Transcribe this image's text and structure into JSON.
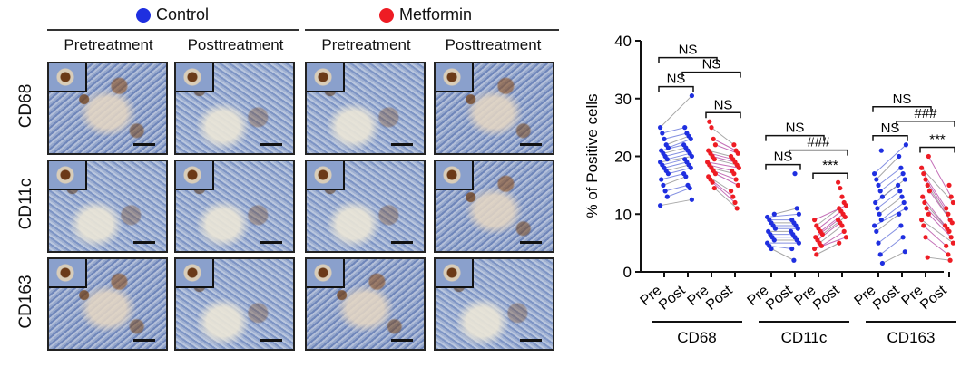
{
  "figure": {
    "legend": {
      "control_label": "Control",
      "metformin_label": "Metformin",
      "control_color": "#1f2fe0",
      "metformin_color": "#ee1c24"
    },
    "columns": [
      "Pretreatment",
      "Posttreatment",
      "Pretreatment",
      "Posttreatment"
    ],
    "rows": [
      "CD68",
      "CD11c",
      "CD163"
    ]
  },
  "chart_data": {
    "type": "scatter",
    "ylabel": "% of Positive cells",
    "ylim": [
      0,
      40
    ],
    "yticks": [
      0,
      10,
      20,
      30,
      40
    ],
    "groups": [
      {
        "name": "CD68",
        "x_labels": [
          "Pre",
          "Post",
          "Pre",
          "Post"
        ],
        "series": [
          {
            "name": "Control Pre",
            "color": "#1f2fe0",
            "values": [
              11.5,
              13,
              14,
              15,
              16,
              17,
              17.5,
              18,
              18.5,
              19,
              19.5,
              20,
              20.5,
              21,
              21.5,
              22,
              23,
              24,
              25
            ]
          },
          {
            "name": "Control Post",
            "color": "#1f2fe0",
            "values": [
              12.5,
              14.5,
              15,
              16.5,
              17,
              18,
              18.5,
              19,
              19.5,
              20,
              20.5,
              21,
              21.5,
              22,
              23,
              23.5,
              24,
              25,
              30.5
            ]
          },
          {
            "name": "Metformin Pre",
            "color": "#ee1c24",
            "values": [
              14.5,
              15.5,
              16,
              16.5,
              17,
              17.5,
              18,
              18.5,
              19,
              19.5,
              20,
              20.5,
              21,
              22,
              23,
              25,
              26
            ]
          },
          {
            "name": "Metformin Post",
            "color": "#ee1c24",
            "values": [
              11,
              12,
              13,
              14,
              15,
              16,
              17,
              17.5,
              18,
              18.5,
              19,
              19.5,
              20,
              20.5,
              21,
              22
            ]
          }
        ],
        "comparisons": [
          {
            "label": "NS",
            "from": 0,
            "to": 1
          },
          {
            "label": "NS",
            "from": 2,
            "to": 3
          },
          {
            "label": "NS",
            "from": 0,
            "to": 2
          },
          {
            "label": "NS",
            "from": 1,
            "to": 3
          }
        ]
      },
      {
        "name": "CD11c",
        "x_labels": [
          "Pre",
          "Post",
          "Pre",
          "Post"
        ],
        "series": [
          {
            "name": "Control Pre",
            "color": "#1f2fe0",
            "values": [
              4,
              4.5,
              5,
              5.5,
              6,
              6.5,
              7,
              7.5,
              8,
              8.5,
              9,
              9.5,
              10
            ]
          },
          {
            "name": "Control Post",
            "color": "#1f2fe0",
            "values": [
              2,
              4,
              5,
              5.5,
              6,
              6.5,
              7,
              7.5,
              8,
              8.5,
              9,
              10,
              11,
              17
            ]
          },
          {
            "name": "Metformin Pre",
            "color": "#ee1c24",
            "values": [
              3,
              4,
              4.5,
              5,
              5.5,
              6,
              6.5,
              7,
              7.5,
              8,
              9
            ]
          },
          {
            "name": "Metformin Post",
            "color": "#ee1c24",
            "values": [
              5,
              6,
              7,
              8,
              8.5,
              9,
              9.5,
              10,
              10.5,
              11,
              11.5,
              12,
              13,
              14.5,
              15.5
            ]
          }
        ],
        "comparisons": [
          {
            "label": "NS",
            "from": 0,
            "to": 1
          },
          {
            "label": "***",
            "from": 2,
            "to": 3
          },
          {
            "label": "NS",
            "from": 0,
            "to": 2
          },
          {
            "label": "###",
            "from": 1,
            "to": 3
          }
        ]
      },
      {
        "name": "CD163",
        "x_labels": [
          "Pre",
          "Post",
          "Pre",
          "Post"
        ],
        "series": [
          {
            "name": "Control Pre",
            "color": "#1f2fe0",
            "values": [
              1.5,
              3,
              5,
              7,
              8,
              9,
              10,
              11,
              12,
              13,
              14,
              15,
              16,
              17,
              21
            ]
          },
          {
            "name": "Control Post",
            "color": "#1f2fe0",
            "values": [
              3.5,
              6,
              8,
              10,
              11,
              12,
              13,
              14,
              15,
              16,
              17,
              18,
              20,
              22
            ]
          },
          {
            "name": "Metformin Pre",
            "color": "#ee1c24",
            "values": [
              2.5,
              6,
              8,
              9,
              10,
              11,
              12,
              13,
              14,
              15,
              16,
              17,
              18,
              20
            ]
          },
          {
            "name": "Metformin Post",
            "color": "#ee1c24",
            "values": [
              2,
              3,
              4.5,
              5,
              6,
              7,
              7.5,
              8,
              8.5,
              9,
              10,
              11,
              12,
              13,
              15
            ]
          }
        ],
        "comparisons": [
          {
            "label": "NS",
            "from": 0,
            "to": 1
          },
          {
            "label": "***",
            "from": 2,
            "to": 3
          },
          {
            "label": "NS",
            "from": 0,
            "to": 2
          },
          {
            "label": "###",
            "from": 1,
            "to": 3
          }
        ]
      }
    ]
  }
}
